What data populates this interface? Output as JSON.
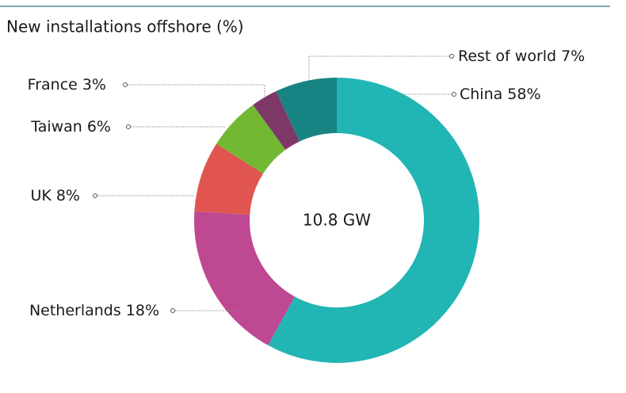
{
  "chart_data": {
    "type": "donut",
    "title": "New installations offshore (%)",
    "center_label": "10.8 GW",
    "categories": [
      "China",
      "Netherlands",
      "UK",
      "Taiwan",
      "France",
      "Rest of world"
    ],
    "values": [
      58,
      18,
      8,
      6,
      3,
      7
    ],
    "value_labels": [
      "58%",
      "18%",
      "8%",
      "6%",
      "3%",
      "7%"
    ],
    "colors": [
      "#21b5b4",
      "#bf4892",
      "#e0554f",
      "#72b833",
      "#7d3868",
      "#178483"
    ]
  }
}
